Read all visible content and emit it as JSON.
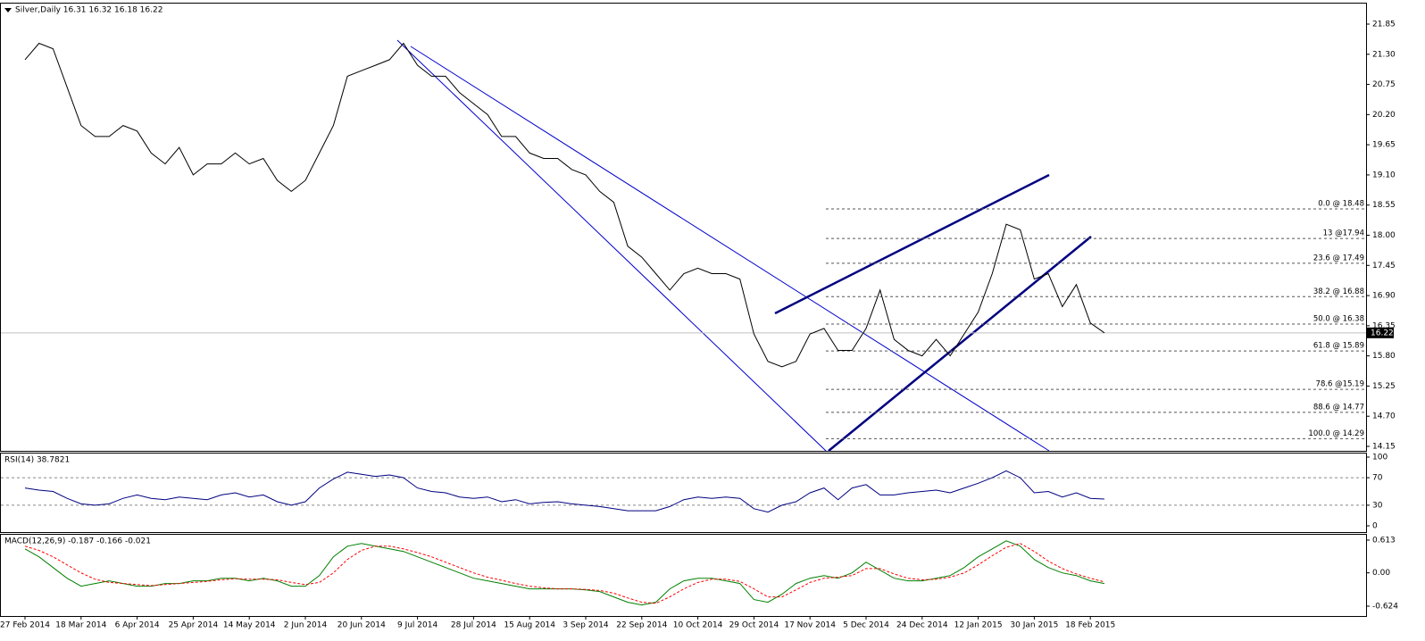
{
  "chart_data": [
    {
      "type": "line",
      "title": "Silver,Daily  16.31 16.32 16.18 16.22",
      "color": "#000000",
      "categories": [
        "27 Feb 2014",
        null,
        null,
        null,
        "18 Mar 2014",
        null,
        null,
        null,
        "6 Apr 2014",
        null,
        null,
        null,
        "25 Apr 2014",
        null,
        null,
        null,
        "14 May 2014",
        null,
        null,
        null,
        "2 Jun 2014",
        null,
        null,
        null,
        "20 Jun 2014",
        null,
        null,
        null,
        "9 Jul 2014",
        null,
        null,
        null,
        "28 Jul 2014",
        null,
        null,
        null,
        "15 Aug 2014",
        null,
        null,
        null,
        "3 Sep 2014",
        null,
        null,
        null,
        "22 Sep 2014",
        null,
        null,
        null,
        "10 Oct 2014",
        null,
        null,
        null,
        "29 Oct 2014",
        null,
        null,
        null,
        "17 Nov 2014",
        null,
        null,
        null,
        "5 Dec 2014",
        null,
        null,
        null,
        "24 Dec 2014",
        null,
        null,
        null,
        "12 Jan 2015",
        null,
        null,
        null,
        "30 Jan 2015",
        null,
        null,
        null,
        "18 Feb 2015",
        null
      ],
      "values": [
        21.2,
        21.5,
        21.4,
        20.7,
        20.0,
        19.8,
        19.8,
        20.0,
        19.9,
        19.5,
        19.3,
        19.6,
        19.1,
        19.3,
        19.3,
        19.5,
        19.3,
        19.4,
        19.0,
        18.8,
        19.0,
        19.5,
        20.0,
        20.9,
        21.0,
        21.1,
        21.2,
        21.5,
        21.1,
        20.9,
        20.9,
        20.6,
        20.4,
        20.2,
        19.8,
        19.8,
        19.5,
        19.4,
        19.4,
        19.2,
        19.1,
        18.8,
        18.6,
        17.8,
        17.6,
        17.3,
        17.0,
        17.3,
        17.4,
        17.3,
        17.3,
        17.2,
        16.2,
        15.7,
        15.6,
        15.7,
        16.2,
        16.3,
        15.9,
        15.9,
        16.3,
        17.0,
        16.1,
        15.9,
        15.8,
        16.1,
        15.8,
        16.2,
        16.6,
        17.3,
        18.2,
        18.1,
        17.2,
        17.3,
        16.7,
        17.1,
        16.4,
        16.22
      ],
      "ylim": [
        14.15,
        21.85
      ],
      "yticks": [
        21.85,
        {
          "value": 21.3,
          "label": "21.30"
        },
        20.75,
        {
          "value": 20.2,
          "label": "20.20"
        },
        19.65,
        {
          "value": 19.1,
          "label": "19.10"
        },
        18.55,
        {
          "value": 18,
          "label": "18.00"
        },
        17.45,
        {
          "value": 16.9,
          "label": "16.90"
        },
        16.35,
        {
          "value": 15.8,
          "label": "15.80"
        },
        15.25,
        {
          "value": 14.7,
          "label": "14.70"
        },
        14.15
      ],
      "last_price": 16.22,
      "fib_levels": [
        {
          "value": 18.48,
          "label": "0.0 @ 18.48"
        },
        {
          "value": 17.94,
          "label": "13 @17.94"
        },
        {
          "value": 17.49,
          "label": "23.6 @ 17.49"
        },
        {
          "value": 16.88,
          "label": "38.2 @ 16.88"
        },
        {
          "value": 16.38,
          "label": "50.0 @ 16.38"
        },
        {
          "value": 15.89,
          "label": "61.8 @ 15.89"
        },
        {
          "value": 15.19,
          "label": "78.6 @15.19"
        },
        {
          "value": 14.77,
          "label": "88.6 @ 14.77"
        },
        {
          "value": 14.29,
          "label": "100.0 @ 14.29"
        }
      ]
    },
    {
      "type": "line",
      "title": "RSI(14) 38.7821",
      "color": "#000080",
      "grid": true,
      "values": [
        55,
        52,
        50,
        40,
        32,
        30,
        32,
        40,
        45,
        40,
        38,
        42,
        40,
        38,
        45,
        48,
        42,
        45,
        35,
        30,
        35,
        55,
        68,
        78,
        75,
        72,
        74,
        70,
        55,
        50,
        48,
        42,
        40,
        42,
        35,
        38,
        32,
        34,
        35,
        32,
        30,
        28,
        25,
        22,
        22,
        22,
        28,
        38,
        42,
        40,
        42,
        40,
        25,
        20,
        30,
        35,
        48,
        55,
        38,
        55,
        60,
        45,
        45,
        48,
        50,
        52,
        48,
        55,
        62,
        70,
        80,
        70,
        48,
        50,
        42,
        48,
        40,
        39
      ],
      "ylim": [
        0,
        100
      ],
      "yticks": [
        100,
        70,
        30,
        0
      ]
    },
    {
      "type": "line",
      "title": "MACD(12,26,9) -0.187 -0.166 -0.021",
      "series": [
        {
          "color": "#008000",
          "values": [
            0.45,
            0.3,
            0.1,
            -0.1,
            -0.25,
            -0.2,
            -0.15,
            -0.2,
            -0.25,
            -0.25,
            -0.2,
            -0.2,
            -0.15,
            -0.15,
            -0.1,
            -0.1,
            -0.15,
            -0.1,
            -0.15,
            -0.25,
            -0.25,
            -0.05,
            0.3,
            0.5,
            0.55,
            0.5,
            0.45,
            0.4,
            0.3,
            0.2,
            0.1,
            0.0,
            -0.1,
            -0.15,
            -0.2,
            -0.25,
            -0.3,
            -0.3,
            -0.3,
            -0.3,
            -0.32,
            -0.35,
            -0.45,
            -0.55,
            -0.6,
            -0.55,
            -0.3,
            -0.15,
            -0.1,
            -0.1,
            -0.15,
            -0.2,
            -0.5,
            -0.55,
            -0.4,
            -0.2,
            -0.1,
            -0.05,
            -0.1,
            0.0,
            0.2,
            0.05,
            -0.1,
            -0.15,
            -0.15,
            -0.1,
            -0.05,
            0.1,
            0.3,
            0.45,
            0.6,
            0.5,
            0.25,
            0.1,
            0.0,
            -0.05,
            -0.15,
            -0.2
          ]
        },
        {
          "color": "#ff0000",
          "dashed": true,
          "values": [
            0.5,
            0.42,
            0.3,
            0.15,
            0.0,
            -0.12,
            -0.18,
            -0.2,
            -0.22,
            -0.24,
            -0.22,
            -0.2,
            -0.18,
            -0.16,
            -0.13,
            -0.11,
            -0.12,
            -0.12,
            -0.13,
            -0.18,
            -0.22,
            -0.18,
            0.0,
            0.25,
            0.42,
            0.5,
            0.5,
            0.45,
            0.38,
            0.3,
            0.2,
            0.1,
            0.0,
            -0.08,
            -0.14,
            -0.2,
            -0.25,
            -0.28,
            -0.3,
            -0.3,
            -0.31,
            -0.33,
            -0.38,
            -0.47,
            -0.55,
            -0.57,
            -0.45,
            -0.3,
            -0.18,
            -0.12,
            -0.12,
            -0.16,
            -0.3,
            -0.45,
            -0.45,
            -0.32,
            -0.18,
            -0.1,
            -0.08,
            -0.05,
            0.08,
            0.08,
            -0.02,
            -0.1,
            -0.13,
            -0.12,
            -0.08,
            0.0,
            0.15,
            0.32,
            0.48,
            0.55,
            0.4,
            0.22,
            0.08,
            -0.02,
            -0.1,
            -0.17
          ]
        }
      ],
      "ylim": [
        -0.624,
        0.613
      ],
      "yticks": [
        0.613,
        {
          "value": 0,
          "label": "0.00"
        },
        -0.624
      ]
    }
  ]
}
